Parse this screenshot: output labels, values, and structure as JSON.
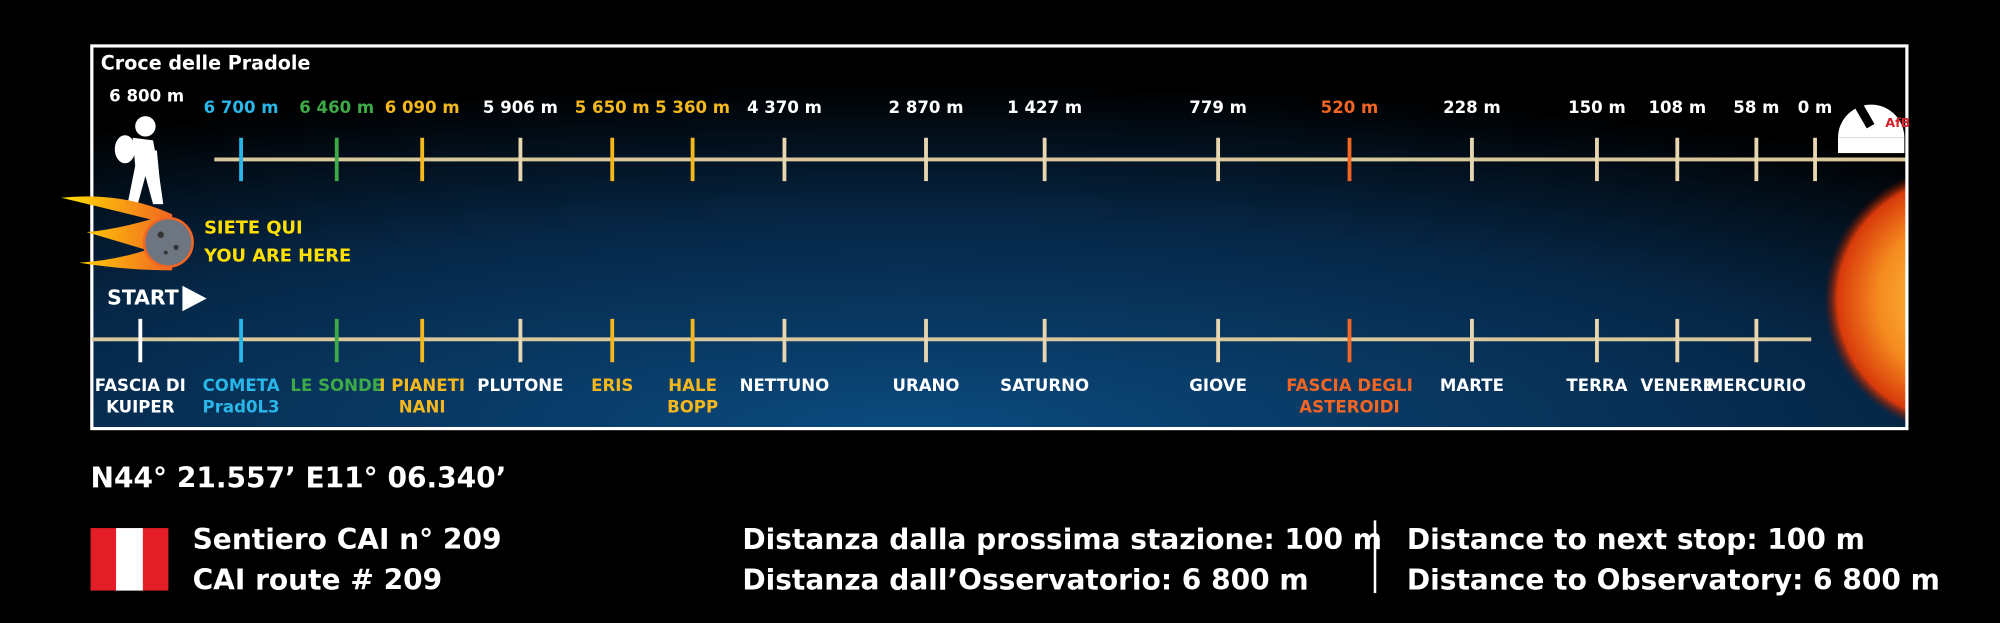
{
  "panel": {
    "title": "Croce delle Pradole",
    "you_are_here": [
      "SIETE QUI",
      "YOU ARE HERE"
    ],
    "start": "START"
  },
  "stops": [
    {
      "distance": "6 800 m",
      "name": [
        "FASCIA DI",
        "KUIPER"
      ],
      "color": "#ffffff"
    },
    {
      "distance": "6 700 m",
      "name": [
        "COMETA",
        "Prad0L3"
      ],
      "color": "#29b6e8"
    },
    {
      "distance": "6 460 m",
      "name": [
        "LE SONDE"
      ],
      "color": "#3daa47"
    },
    {
      "distance": "6 090 m",
      "name": [
        "I PIANETI",
        "NANI"
      ],
      "color": "#f5b81c"
    },
    {
      "distance": "5 906 m",
      "name": [
        "PLUTONE"
      ],
      "color": "#e8d6b0"
    },
    {
      "distance": "5 650 m",
      "name": [
        "ERIS"
      ],
      "color": "#f5b81c"
    },
    {
      "distance": "5 360 m",
      "name": [
        "HALE",
        "BOPP"
      ],
      "color": "#f5b81c"
    },
    {
      "distance": "4 370 m",
      "name": [
        "NETTUNO"
      ],
      "color": "#e8d6b0"
    },
    {
      "distance": "2 870 m",
      "name": [
        "URANO"
      ],
      "color": "#e8d6b0"
    },
    {
      "distance": "1 427 m",
      "name": [
        "SATURNO"
      ],
      "color": "#e8d6b0"
    },
    {
      "distance": "779 m",
      "name": [
        "GIOVE"
      ],
      "color": "#e8d6b0"
    },
    {
      "distance": "520 m",
      "name": [
        "FASCIA DEGLI",
        "ASTEROIDI"
      ],
      "color": "#f26522"
    },
    {
      "distance": "228 m",
      "name": [
        "MARTE"
      ],
      "color": "#e8d6b0"
    },
    {
      "distance": "150 m",
      "name": [
        "TERRA"
      ],
      "color": "#e8d6b0"
    },
    {
      "distance": "108 m",
      "name": [
        "VENERE"
      ],
      "color": "#e8d6b0"
    },
    {
      "distance": "58 m",
      "name": [
        "MERCURIO"
      ],
      "color": "#e8d6b0"
    },
    {
      "distance": "0 m",
      "color": "#e8d6b0"
    }
  ],
  "footer": {
    "coordinates": "N44° 21.557’ E11° 06.340’",
    "route": [
      "Sentiero CAI n° 209",
      "CAI route # 209"
    ],
    "italian": [
      "Distanza dalla prossima stazione: 100 m",
      "Distanza dall’Osservatorio: 6 800 m"
    ],
    "english": [
      "Distance to next stop: 100 m",
      "Distance to Observatory: 6 800 m"
    ]
  }
}
